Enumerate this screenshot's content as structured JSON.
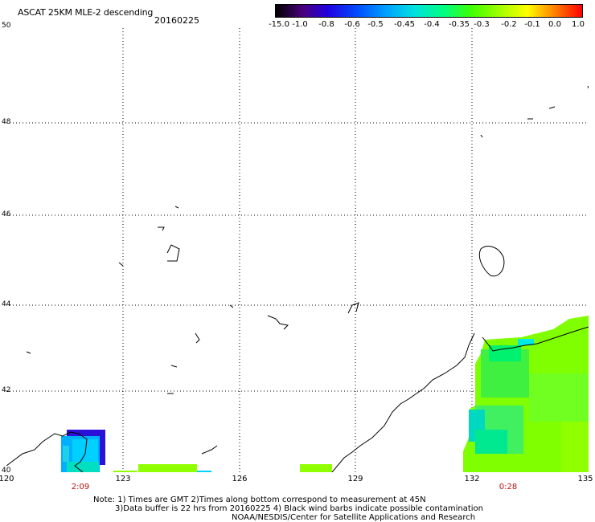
{
  "header": {
    "title": "ASCAT 25KM MLE-2 descending",
    "date": "20160225"
  },
  "colorbar": {
    "labels": [
      "-15.0",
      "-1.0",
      "-0.8",
      "-0.6",
      "-0.5",
      "-0.45",
      "-0.4",
      "-0.35",
      "-0.3",
      "-0.2",
      "-0.1",
      "0.0",
      "1.0"
    ]
  },
  "map": {
    "lat_labels": [
      "50",
      "48",
      "46",
      "44",
      "42",
      "40"
    ],
    "lon_labels": [
      "120",
      "123",
      "126",
      "129",
      "132",
      "135"
    ],
    "time_labels": [
      "2:09",
      "0:28"
    ]
  },
  "footer": {
    "note1": "Note: 1) Times are GMT 2)Times along bottom correspond to measurement at 45N",
    "note2": "3)Data buffer is 22 hrs from 20160225 4) Black wind barbs indicate possible contamination",
    "credit": "NOAA/NESDIS/Center for Satellite Applications and Research"
  },
  "colors": {
    "swath_green": "#80ff00",
    "swath_cyan": "#00d0ff",
    "swath_blue": "#2020e0",
    "grid": "#000000"
  }
}
